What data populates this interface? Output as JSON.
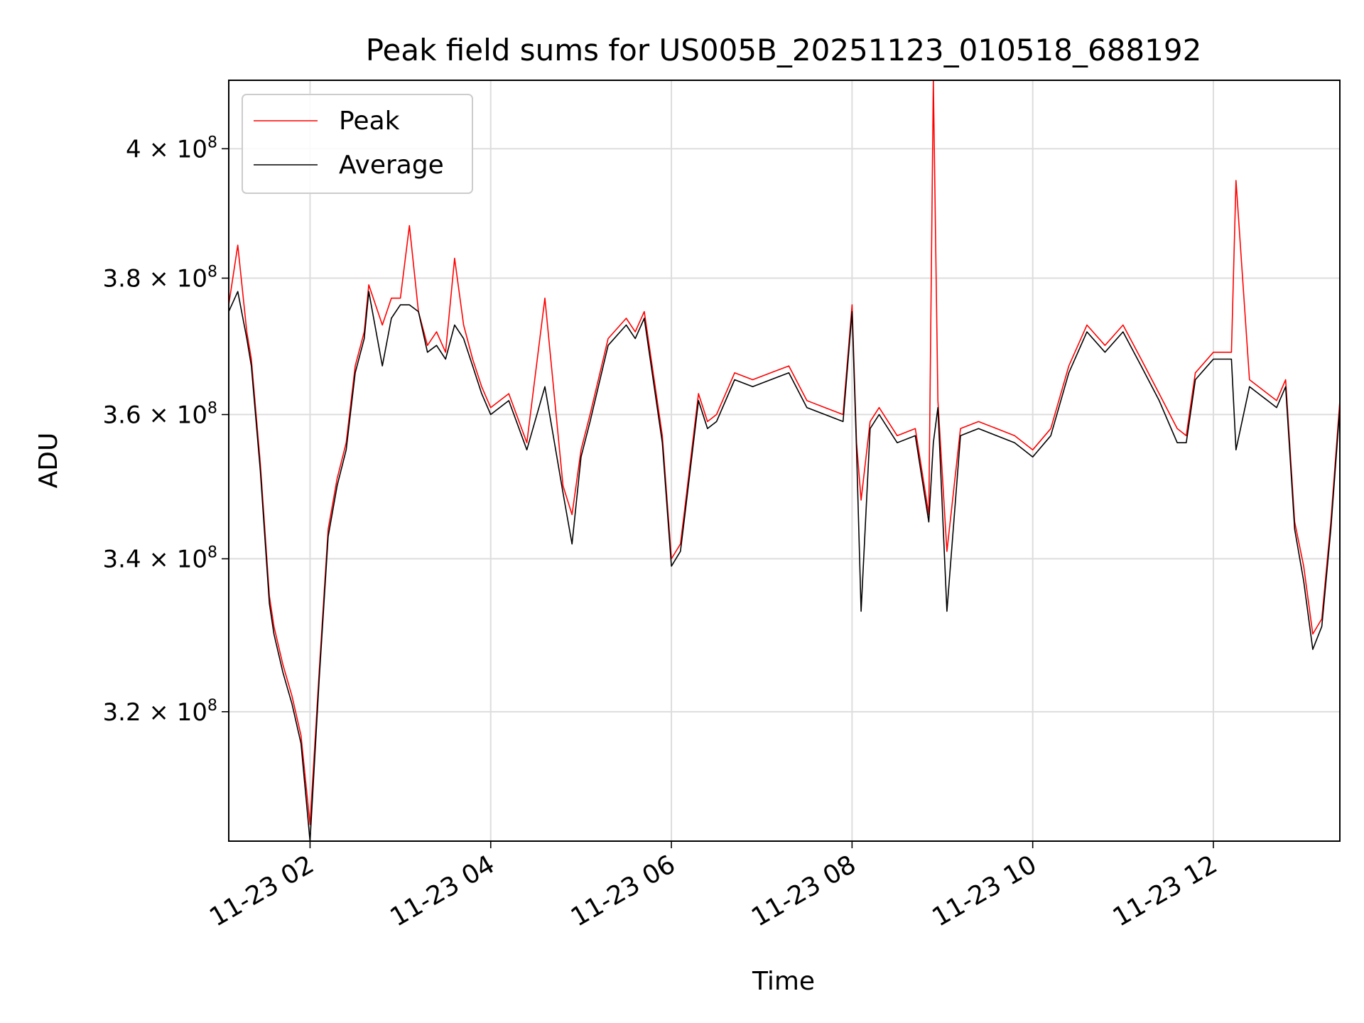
{
  "chart_data": {
    "type": "line",
    "title": "Peak field sums for US005B_20251123_010518_688192",
    "xlabel": "Time",
    "ylabel": "ADU",
    "yscale": "log",
    "xlim_hours": [
      1.1,
      13.4
    ],
    "ylim": [
      304000000,
      411000000
    ],
    "grid": true,
    "legend_position": "upper-left",
    "x_ticks": [
      {
        "value": 2,
        "label": "11-23 02"
      },
      {
        "value": 4,
        "label": "11-23 04"
      },
      {
        "value": 6,
        "label": "11-23 06"
      },
      {
        "value": 8,
        "label": "11-23 08"
      },
      {
        "value": 10,
        "label": "11-23 10"
      },
      {
        "value": 12,
        "label": "11-23 12"
      }
    ],
    "y_ticks": [
      {
        "value": 320000000,
        "mantissa": "3.2",
        "exp": "8"
      },
      {
        "value": 340000000,
        "mantissa": "3.4",
        "exp": "8"
      },
      {
        "value": 360000000,
        "mantissa": "3.6",
        "exp": "8"
      },
      {
        "value": 380000000,
        "mantissa": "3.8",
        "exp": "8"
      },
      {
        "value": 400000000,
        "mantissa": "4",
        "exp": "8"
      }
    ],
    "x_unit": "hours since 11-23 00:00",
    "series": [
      {
        "name": "Peak",
        "color": "#ff0000",
        "x": [
          1.1,
          1.2,
          1.3,
          1.35,
          1.45,
          1.55,
          1.6,
          1.7,
          1.8,
          1.9,
          2.0,
          2.1,
          2.2,
          2.3,
          2.4,
          2.5,
          2.6,
          2.65,
          2.8,
          2.9,
          3.0,
          3.1,
          3.2,
          3.3,
          3.4,
          3.5,
          3.6,
          3.7,
          3.8,
          3.9,
          4.0,
          4.2,
          4.4,
          4.6,
          4.8,
          4.9,
          5.0,
          5.1,
          5.3,
          5.5,
          5.6,
          5.7,
          5.9,
          6.0,
          6.1,
          6.15,
          6.3,
          6.4,
          6.5,
          6.7,
          6.9,
          7.1,
          7.3,
          7.5,
          7.7,
          7.9,
          8.0,
          8.05,
          8.1,
          8.2,
          8.3,
          8.5,
          8.7,
          8.85,
          8.9,
          8.95,
          9.05,
          9.2,
          9.4,
          9.6,
          9.8,
          10.0,
          10.2,
          10.4,
          10.6,
          10.8,
          11.0,
          11.2,
          11.4,
          11.6,
          11.7,
          11.8,
          12.0,
          12.2,
          12.25,
          12.4,
          12.6,
          12.7,
          12.8,
          12.9,
          13.0,
          13.1,
          13.2,
          13.3,
          13.4
        ],
        "values": [
          376000000,
          385000000,
          372000000,
          368000000,
          353000000,
          335000000,
          331000000,
          326000000,
          322000000,
          317000000,
          306000000,
          325000000,
          344000000,
          351000000,
          356000000,
          367000000,
          372000000,
          379000000,
          373000000,
          377000000,
          377000000,
          388000000,
          375000000,
          370000000,
          372000000,
          369000000,
          383000000,
          373000000,
          368000000,
          364000000,
          361000000,
          363000000,
          356000000,
          377000000,
          350000000,
          346000000,
          355000000,
          360000000,
          371000000,
          374000000,
          372000000,
          375000000,
          357000000,
          340000000,
          342000000,
          347000000,
          363000000,
          359000000,
          360000000,
          366000000,
          365000000,
          366000000,
          367000000,
          362000000,
          361000000,
          360000000,
          376000000,
          356000000,
          348000000,
          359000000,
          361000000,
          357000000,
          358000000,
          346000000,
          411000000,
          362000000,
          341000000,
          358000000,
          359000000,
          358000000,
          357000000,
          355000000,
          358000000,
          367000000,
          373000000,
          370000000,
          373000000,
          368000000,
          363000000,
          358000000,
          357000000,
          366000000,
          369000000,
          369000000,
          395000000,
          365000000,
          363000000,
          362000000,
          365000000,
          345000000,
          339000000,
          330000000,
          332000000,
          345000000,
          362000000
        ]
      },
      {
        "name": "Average",
        "color": "#000000",
        "x": [
          1.1,
          1.2,
          1.3,
          1.35,
          1.45,
          1.55,
          1.6,
          1.7,
          1.8,
          1.9,
          2.0,
          2.1,
          2.2,
          2.3,
          2.4,
          2.5,
          2.6,
          2.65,
          2.8,
          2.9,
          3.0,
          3.1,
          3.2,
          3.3,
          3.4,
          3.5,
          3.6,
          3.7,
          3.8,
          3.9,
          4.0,
          4.2,
          4.4,
          4.6,
          4.8,
          4.9,
          5.0,
          5.1,
          5.3,
          5.5,
          5.6,
          5.7,
          5.9,
          6.0,
          6.1,
          6.15,
          6.3,
          6.4,
          6.5,
          6.7,
          6.9,
          7.1,
          7.3,
          7.5,
          7.7,
          7.9,
          8.0,
          8.05,
          8.1,
          8.2,
          8.3,
          8.5,
          8.7,
          8.85,
          8.9,
          8.95,
          9.05,
          9.2,
          9.4,
          9.6,
          9.8,
          10.0,
          10.2,
          10.4,
          10.6,
          10.8,
          11.0,
          11.2,
          11.4,
          11.6,
          11.7,
          11.8,
          12.0,
          12.2,
          12.25,
          12.4,
          12.6,
          12.7,
          12.8,
          12.9,
          13.0,
          13.1,
          13.2,
          13.3,
          13.4
        ],
        "values": [
          375000000,
          378000000,
          371000000,
          367000000,
          352000000,
          334000000,
          330000000,
          325000000,
          321000000,
          316000000,
          304000000,
          324000000,
          343000000,
          350000000,
          355000000,
          366000000,
          371000000,
          378000000,
          367000000,
          374000000,
          376000000,
          376000000,
          375000000,
          369000000,
          370000000,
          368000000,
          373000000,
          371000000,
          367000000,
          363000000,
          360000000,
          362000000,
          355000000,
          364000000,
          349000000,
          342000000,
          354000000,
          359000000,
          370000000,
          373000000,
          371000000,
          374000000,
          356000000,
          339000000,
          341000000,
          346000000,
          362000000,
          358000000,
          359000000,
          365000000,
          364000000,
          365000000,
          366000000,
          361000000,
          360000000,
          359000000,
          375000000,
          355000000,
          333000000,
          358000000,
          360000000,
          356000000,
          357000000,
          345000000,
          356000000,
          361000000,
          333000000,
          357000000,
          358000000,
          357000000,
          356000000,
          354000000,
          357000000,
          366000000,
          372000000,
          369000000,
          372000000,
          367000000,
          362000000,
          356000000,
          356000000,
          365000000,
          368000000,
          368000000,
          355000000,
          364000000,
          362000000,
          361000000,
          364000000,
          344000000,
          337000000,
          328000000,
          331000000,
          344000000,
          361000000
        ]
      }
    ]
  }
}
